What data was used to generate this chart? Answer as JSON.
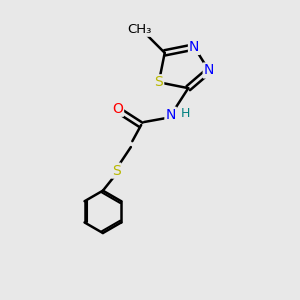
{
  "background_color": "#e8e8e8",
  "atom_colors": {
    "C": "#000000",
    "N": "#0000ff",
    "O": "#ff0000",
    "S": "#b8b800",
    "H": "#008080"
  },
  "bond_color": "#000000",
  "bond_width": 1.8,
  "font_size": 10,
  "figsize": [
    3.0,
    3.0
  ],
  "dpi": 100,
  "xlim": [
    0,
    10
  ],
  "ylim": [
    0,
    10
  ]
}
